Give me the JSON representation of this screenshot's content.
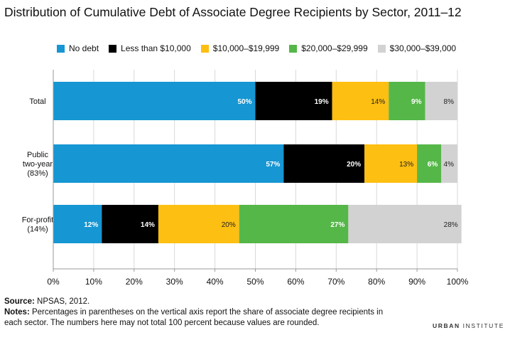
{
  "colors": {
    "no_debt": "#1696d2",
    "lt_10k": "#000000",
    "10k_20k": "#fdbf11",
    "20k_30k": "#55b748",
    "30k_40k": "#d2d2d2",
    "axis": "#999999",
    "grid": "#d9d9d9"
  },
  "footer": {
    "source_label": "Source:",
    "source_text": " NPSAS, 2012.",
    "notes_label": "Notes:",
    "notes_text": " Percentages in parentheses on the vertical axis report the share of associate degree recipients in each sector. The numbers here may not total 100 percent because values are rounded."
  },
  "brand": {
    "part1": "URBAN",
    "part2": " INSTITUTE"
  },
  "chart_data": {
    "type": "bar",
    "orientation": "horizontal",
    "stacked": true,
    "title": "Distribution of Cumulative Debt of Associate Degree Recipients by Sector, 2011–12",
    "categories": [
      [
        "Total"
      ],
      [
        "Public",
        "two-year",
        "(83%)"
      ],
      [
        "For-profit",
        "(14%)"
      ]
    ],
    "series": [
      {
        "name": "No debt",
        "color_key": "no_debt",
        "label_color": "#ffffff",
        "label_bold": true,
        "values": [
          50,
          57,
          12
        ]
      },
      {
        "name": "Less than $10,000",
        "color_key": "lt_10k",
        "label_color": "#ffffff",
        "label_bold": true,
        "values": [
          19,
          20,
          14
        ]
      },
      {
        "name": "$10,000–$19,999",
        "color_key": "10k_20k",
        "label_color": "#222222",
        "label_bold": false,
        "values": [
          14,
          13,
          20
        ]
      },
      {
        "name": "$20,000–$29,999",
        "color_key": "20k_30k",
        "label_color": "#ffffff",
        "label_bold": true,
        "values": [
          9,
          6,
          27
        ]
      },
      {
        "name": "$30,000–$39,000",
        "color_key": "30k_40k",
        "label_color": "#222222",
        "label_bold": false,
        "values": [
          8,
          4,
          28
        ]
      }
    ],
    "data_labels": [
      [
        "50%",
        "19%",
        "14%",
        "9%",
        "8%"
      ],
      [
        "57%",
        "20%",
        "13%",
        "6%",
        "4%"
      ],
      [
        "12%",
        "14%",
        "20%",
        "27%",
        "28%"
      ]
    ],
    "xlim": [
      0,
      100
    ],
    "xticks": [
      0,
      10,
      20,
      30,
      40,
      50,
      60,
      70,
      80,
      90,
      100
    ],
    "xtick_labels": [
      "0%",
      "10%",
      "20%",
      "30%",
      "40%",
      "50%",
      "60%",
      "70%",
      "80%",
      "90%",
      "100%"
    ],
    "xlabel": "",
    "ylabel": "",
    "grid": "vertical",
    "legend": "top"
  }
}
